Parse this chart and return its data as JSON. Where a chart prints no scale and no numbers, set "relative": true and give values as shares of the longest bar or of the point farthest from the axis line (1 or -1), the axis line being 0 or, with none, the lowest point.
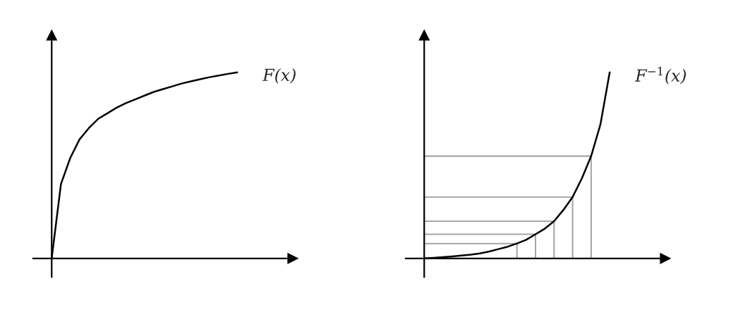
{
  "chart_data": [
    {
      "type": "line",
      "relative": true,
      "categories": [
        null,
        null,
        null,
        null,
        null,
        null,
        null,
        null,
        null,
        null,
        null,
        null,
        null,
        null,
        null,
        null,
        null,
        null,
        null,
        null,
        null
      ],
      "series": [
        {
          "name": "F(x)",
          "color": "#000000",
          "values": [
            0,
            0.4,
            0.54,
            0.64,
            0.7,
            0.75,
            0.78,
            0.81,
            0.835,
            0.855,
            0.875,
            0.895,
            0.91,
            0.925,
            0.94,
            0.952,
            0.963,
            0.974,
            0.983,
            0.992,
            1.0
          ]
        }
      ]
    },
    {
      "type": "line",
      "relative": true,
      "categories": [
        null,
        null,
        null,
        null,
        null,
        null,
        null,
        null,
        null,
        null,
        null,
        null,
        null,
        null,
        null,
        null,
        null,
        null,
        null,
        null,
        null
      ],
      "series": [
        {
          "name": "F$^{−1}$(x)",
          "color": "#000000",
          "values": [
            0,
            0.003,
            0.007,
            0.011,
            0.015,
            0.02,
            0.027,
            0.037,
            0.05,
            0.063,
            0.08,
            0.1,
            0.13,
            0.16,
            0.2,
            0.26,
            0.33,
            0.43,
            0.55,
            0.72,
            1.0
          ]
        }
      ],
      "ref_lines": [
        {
          "axis": "y",
          "value": 0.08,
          "color": "#a6a6a6"
        },
        {
          "axis": "y",
          "value": 0.13,
          "color": "#a6a6a6"
        },
        {
          "axis": "y",
          "value": 0.2,
          "color": "#a6a6a6"
        },
        {
          "axis": "y",
          "value": 0.33,
          "color": "#a6a6a6"
        },
        {
          "axis": "y",
          "value": 0.55,
          "color": "#a6a6a6"
        }
      ]
    }
  ]
}
